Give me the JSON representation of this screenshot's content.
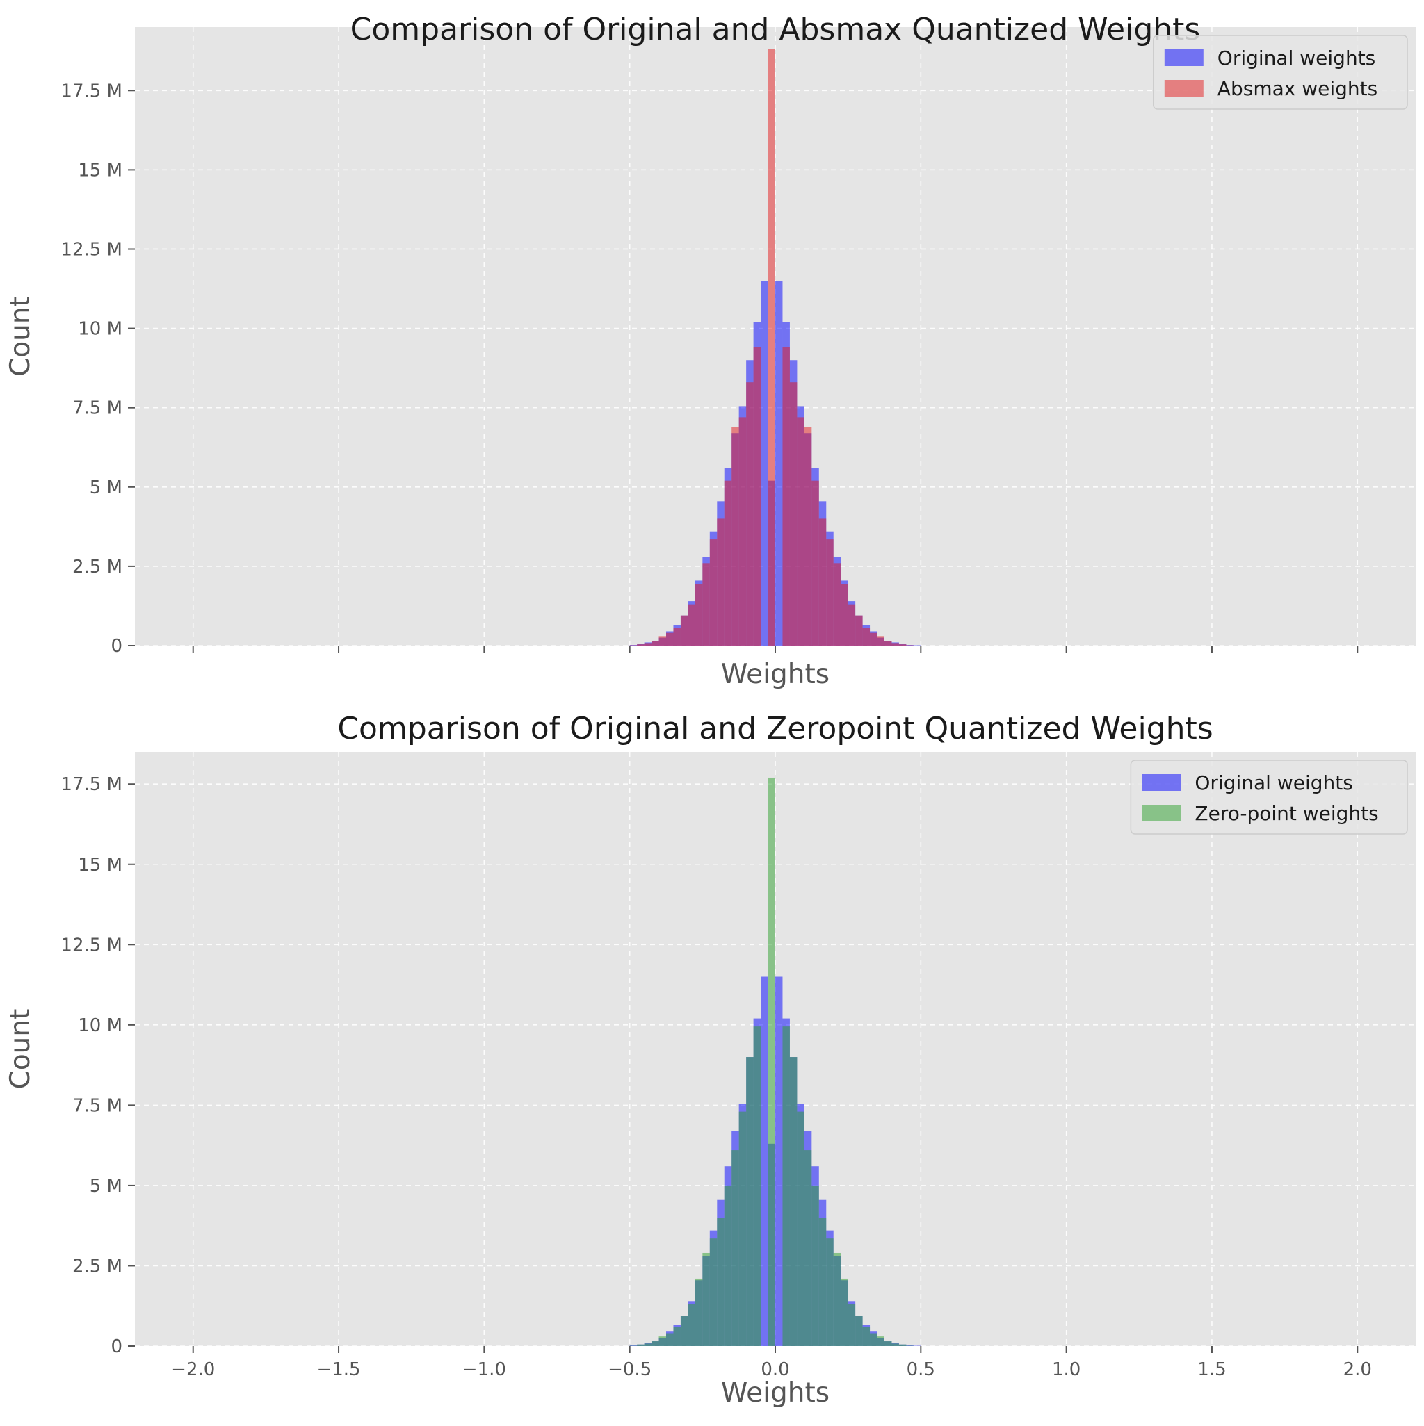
{
  "chart_data": [
    {
      "type": "histogram",
      "title": "Comparison of Original and Absmax Quantized Weights",
      "xlabel": "Weights",
      "ylabel": "Count",
      "xlim": [
        -2.2,
        2.2
      ],
      "ylim": [
        0,
        19.5
      ],
      "y_unit": "M",
      "xticks": [
        -2.0,
        -1.5,
        -1.0,
        -0.5,
        0.0,
        0.5,
        1.0,
        1.5,
        2.0
      ],
      "xtick_labels": [],
      "yticks": [
        0,
        2.5,
        5,
        7.5,
        10,
        12.5,
        15,
        17.5
      ],
      "ytick_labels": [
        "0",
        "2.5 M",
        "5 M",
        "7.5 M",
        "10 M",
        "12.5 M",
        "15 M",
        "17.5 M"
      ],
      "grid": true,
      "legend_position": "top-right",
      "bin_edges": [
        -0.5,
        -0.475,
        -0.45,
        -0.425,
        -0.4,
        -0.375,
        -0.35,
        -0.325,
        -0.3,
        -0.275,
        -0.25,
        -0.225,
        -0.2,
        -0.175,
        -0.15,
        -0.125,
        -0.1,
        -0.075,
        -0.05,
        -0.025,
        0.0,
        0.025,
        0.05,
        0.075,
        0.1,
        0.125,
        0.15,
        0.175,
        0.2,
        0.225,
        0.25,
        0.275,
        0.3,
        0.325,
        0.35,
        0.375,
        0.4,
        0.425,
        0.45,
        0.475,
        0.5
      ],
      "series": [
        {
          "name": "Original weights",
          "color": "#0000ff",
          "values": [
            0.02,
            0.05,
            0.1,
            0.15,
            0.25,
            0.45,
            0.65,
            0.95,
            1.4,
            2.05,
            2.8,
            3.6,
            4.55,
            5.6,
            6.7,
            7.55,
            9.0,
            10.2,
            11.5,
            5.2,
            11.5,
            10.2,
            9.0,
            7.55,
            6.7,
            5.6,
            4.55,
            3.6,
            2.8,
            2.05,
            1.4,
            0.95,
            0.65,
            0.45,
            0.25,
            0.15,
            0.1,
            0.05,
            0.02,
            0.01
          ]
        },
        {
          "name": "Absmax weights",
          "color": "#e41a1c",
          "values": [
            0.01,
            0.04,
            0.08,
            0.14,
            0.3,
            0.4,
            0.55,
            0.95,
            1.3,
            1.95,
            2.6,
            3.35,
            4.0,
            5.2,
            6.9,
            7.2,
            8.3,
            9.4,
            0,
            18.8,
            0,
            9.4,
            8.3,
            7.2,
            6.9,
            5.2,
            4.0,
            3.35,
            2.6,
            1.95,
            1.3,
            0.95,
            0.55,
            0.4,
            0.3,
            0.14,
            0.08,
            0.04,
            0.01,
            0.0
          ]
        }
      ]
    },
    {
      "type": "histogram",
      "title": "Comparison of Original and Zeropoint Quantized Weights",
      "xlabel": "Weights",
      "ylabel": "Count",
      "xlim": [
        -2.2,
        2.2
      ],
      "ylim": [
        0,
        18.5
      ],
      "y_unit": "M",
      "xticks": [
        -2.0,
        -1.5,
        -1.0,
        -0.5,
        0.0,
        0.5,
        1.0,
        1.5,
        2.0
      ],
      "xtick_labels": [
        "−2.0",
        "−1.5",
        "−1.0",
        "−0.5",
        "0.0",
        "0.5",
        "1.0",
        "1.5",
        "2.0"
      ],
      "yticks": [
        0,
        2.5,
        5,
        7.5,
        10,
        12.5,
        15,
        17.5
      ],
      "ytick_labels": [
        "0",
        "2.5 M",
        "5 M",
        "7.5 M",
        "10 M",
        "12.5 M",
        "15 M",
        "17.5 M"
      ],
      "grid": true,
      "legend_position": "top-right",
      "bin_edges": [
        -0.5,
        -0.475,
        -0.45,
        -0.425,
        -0.4,
        -0.375,
        -0.35,
        -0.325,
        -0.3,
        -0.275,
        -0.25,
        -0.225,
        -0.2,
        -0.175,
        -0.15,
        -0.125,
        -0.1,
        -0.075,
        -0.05,
        -0.025,
        0.0,
        0.025,
        0.05,
        0.075,
        0.1,
        0.125,
        0.15,
        0.175,
        0.2,
        0.225,
        0.25,
        0.275,
        0.3,
        0.325,
        0.35,
        0.375,
        0.4,
        0.425,
        0.45,
        0.475,
        0.5
      ],
      "series": [
        {
          "name": "Original weights",
          "color": "#0000ff",
          "values": [
            0.02,
            0.05,
            0.1,
            0.15,
            0.25,
            0.45,
            0.65,
            0.95,
            1.4,
            2.05,
            2.8,
            3.6,
            4.55,
            5.6,
            6.7,
            7.55,
            9.0,
            10.2,
            11.5,
            6.3,
            11.5,
            10.2,
            9.0,
            7.55,
            6.7,
            5.6,
            4.55,
            3.6,
            2.8,
            2.05,
            1.4,
            0.95,
            0.65,
            0.45,
            0.25,
            0.15,
            0.1,
            0.05,
            0.02,
            0.01
          ]
        },
        {
          "name": "Zero-point weights",
          "color": "#2ca02c",
          "values": [
            0.01,
            0.05,
            0.08,
            0.15,
            0.3,
            0.4,
            0.6,
            0.95,
            1.3,
            2.1,
            2.9,
            3.35,
            4.0,
            5.0,
            6.1,
            7.3,
            9.0,
            9.95,
            0,
            17.7,
            0,
            9.95,
            9.0,
            7.3,
            6.1,
            5.0,
            4.0,
            3.35,
            2.9,
            2.1,
            1.3,
            0.95,
            0.6,
            0.4,
            0.3,
            0.15,
            0.08,
            0.05,
            0.01,
            0.0
          ]
        }
      ]
    }
  ]
}
